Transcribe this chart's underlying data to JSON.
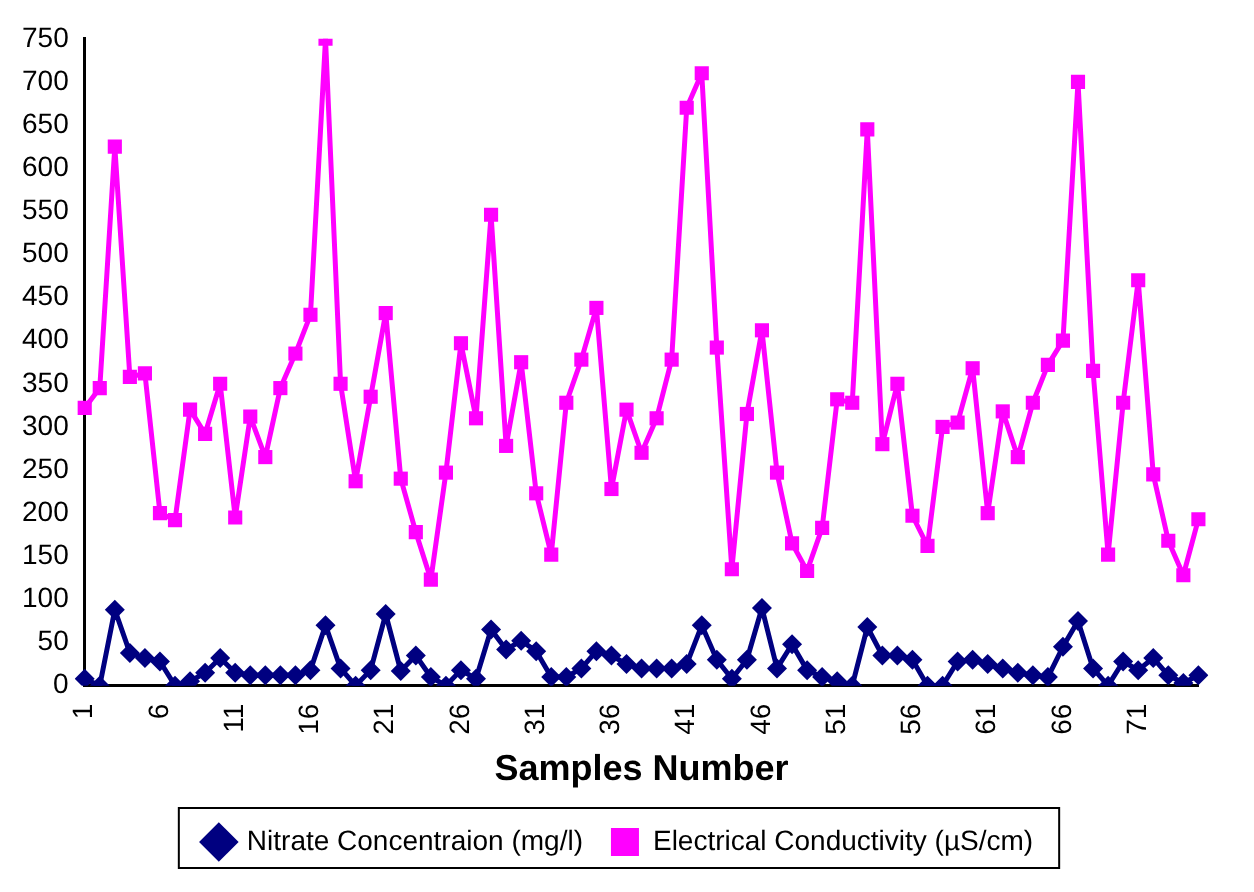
{
  "chart_data": {
    "type": "line",
    "xlabel": "Samples Number",
    "categories": [
      "1",
      null,
      null,
      null,
      null,
      "6",
      null,
      null,
      null,
      null,
      "11",
      null,
      null,
      null,
      null,
      "16",
      null,
      null,
      null,
      null,
      "21",
      null,
      null,
      null,
      null,
      "26",
      null,
      null,
      null,
      null,
      "31",
      null,
      null,
      null,
      null,
      "36",
      null,
      null,
      null,
      null,
      "41",
      null,
      null,
      null,
      null,
      "46",
      null,
      null,
      null,
      null,
      "51",
      null,
      null,
      null,
      null,
      "56",
      null,
      null,
      null,
      null,
      "61",
      null,
      null,
      null,
      null,
      "66",
      null,
      null,
      null,
      null,
      "71",
      null,
      null,
      null,
      null
    ],
    "series": [
      {
        "name": "Nitrate Concentraion (mg/l)",
        "color": "#000080",
        "marker": "diamond",
        "values": [
          8,
          0,
          88,
          38,
          32,
          28,
          0,
          5,
          15,
          32,
          15,
          12,
          12,
          12,
          12,
          18,
          70,
          20,
          0,
          18,
          83,
          17,
          35,
          10,
          0,
          18,
          8,
          65,
          42,
          52,
          40,
          10,
          10,
          20,
          40,
          35,
          25,
          20,
          20,
          20,
          25,
          70,
          30,
          8,
          30,
          90,
          20,
          48,
          18,
          10,
          5,
          0,
          68,
          35,
          35,
          30,
          0,
          0,
          28,
          30,
          25,
          20,
          15,
          12,
          10,
          45,
          75,
          20,
          0,
          28,
          18,
          32,
          12,
          3,
          12
        ]
      },
      {
        "name": "Electrical Conductivity (µS/cm)",
        "color": "#ff00ff",
        "marker": "square",
        "values": [
          322,
          345,
          625,
          358,
          362,
          200,
          192,
          320,
          292,
          350,
          195,
          312,
          265,
          345,
          385,
          430,
          750,
          350,
          237,
          335,
          432,
          240,
          178,
          123,
          247,
          397,
          310,
          546,
          278,
          375,
          223,
          152,
          328,
          378,
          438,
          228,
          320,
          270,
          310,
          378,
          670,
          710,
          392,
          135,
          315,
          412,
          247,
          165,
          133,
          183,
          332,
          328,
          645,
          280,
          350,
          197,
          162,
          300,
          305,
          368,
          200,
          318,
          265,
          328,
          372,
          400,
          700,
          365,
          152,
          328,
          470,
          245,
          168,
          128,
          193
        ]
      }
    ],
    "ylim": [
      0,
      750
    ],
    "yticks": [
      0,
      50,
      100,
      150,
      200,
      250,
      300,
      350,
      400,
      450,
      500,
      550,
      600,
      650,
      700,
      750
    ],
    "grid": false,
    "legend": "bottom",
    "line_style": "solid"
  }
}
